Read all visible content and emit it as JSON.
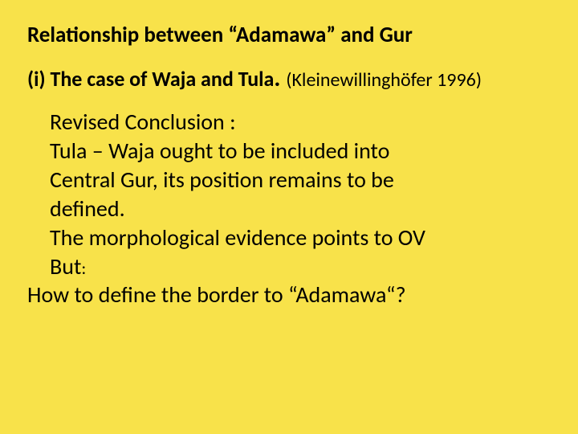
{
  "colors": {
    "background": "#f8e24a",
    "text": "#000000"
  },
  "typography": {
    "font_family": "Calibri, Arial, sans-serif",
    "title_fontsize": 27,
    "subtitle_fontsize": 26,
    "cite_fontsize": 24,
    "body_fontsize": 28
  },
  "title": "Relationship between “Adamawa” and Gur",
  "subtitle": {
    "label": "(i) ",
    "text": "The case of Waja and Tula",
    "dot": ". ",
    "cite": "(Kleinewillinghöfer 1996)"
  },
  "body": {
    "l1": "Revised Conclusion :",
    "l2": "Tula – Waja ought to be included into",
    "l3": "Central Gur, its  position remains to be",
    "l4": "defined.",
    "l5": "The morphological evidence points to OV",
    "l6_but": " But",
    "l6_colon": ":"
  },
  "closing": "How to define the border to “Adamawa“?"
}
